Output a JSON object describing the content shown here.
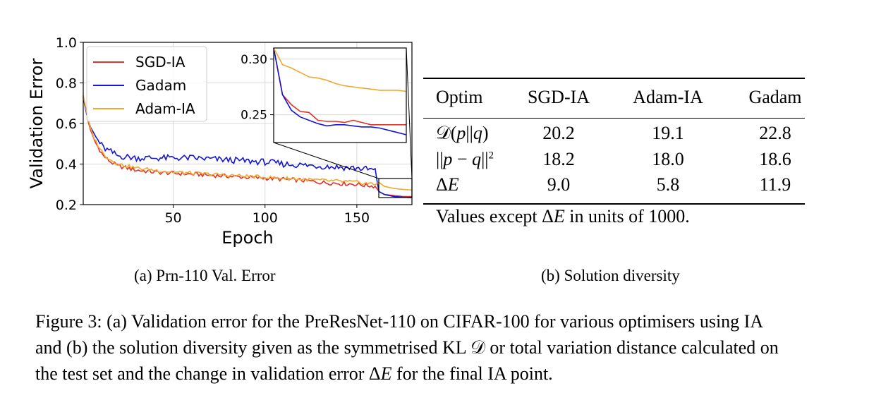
{
  "chart_data": {
    "type": "line",
    "xlabel": "Epoch",
    "ylabel": "Validation Error",
    "xlim": [
      1,
      180
    ],
    "ylim": [
      0.2,
      1.0
    ],
    "xticks": [
      50,
      100,
      150
    ],
    "yticks": [
      0.2,
      0.4,
      0.6,
      0.8,
      1.0
    ],
    "ytick_labels": [
      "0.2",
      "0.4",
      "0.6",
      "0.8",
      "1.0"
    ],
    "xtick_labels": [
      "50",
      "100",
      "150"
    ],
    "grid": true,
    "legend_position": "top-left",
    "series": [
      {
        "name": "SGD-IA",
        "color": "#e0312b",
        "points": [
          [
            1,
            0.73
          ],
          [
            3,
            0.64
          ],
          [
            5,
            0.56
          ],
          [
            8,
            0.5
          ],
          [
            12,
            0.44
          ],
          [
            16,
            0.41
          ],
          [
            20,
            0.39
          ],
          [
            30,
            0.37
          ],
          [
            40,
            0.36
          ],
          [
            50,
            0.355
          ],
          [
            60,
            0.35
          ],
          [
            70,
            0.345
          ],
          [
            80,
            0.34
          ],
          [
            90,
            0.335
          ],
          [
            100,
            0.33
          ],
          [
            110,
            0.325
          ],
          [
            120,
            0.32
          ],
          [
            130,
            0.31
          ],
          [
            140,
            0.305
          ],
          [
            150,
            0.3
          ],
          [
            160,
            0.29
          ],
          [
            162,
            0.265
          ],
          [
            165,
            0.25
          ],
          [
            170,
            0.245
          ],
          [
            175,
            0.24
          ],
          [
            180,
            0.24
          ]
        ]
      },
      {
        "name": "Gadam",
        "color": "#1515d6",
        "points": [
          [
            1,
            0.73
          ],
          [
            3,
            0.64
          ],
          [
            5,
            0.58
          ],
          [
            8,
            0.53
          ],
          [
            12,
            0.48
          ],
          [
            16,
            0.46
          ],
          [
            20,
            0.44
          ],
          [
            30,
            0.43
          ],
          [
            40,
            0.43
          ],
          [
            50,
            0.43
          ],
          [
            60,
            0.43
          ],
          [
            70,
            0.425
          ],
          [
            80,
            0.42
          ],
          [
            90,
            0.415
          ],
          [
            100,
            0.41
          ],
          [
            110,
            0.4
          ],
          [
            120,
            0.395
          ],
          [
            130,
            0.39
          ],
          [
            140,
            0.385
          ],
          [
            150,
            0.38
          ],
          [
            160,
            0.37
          ],
          [
            162,
            0.265
          ],
          [
            165,
            0.25
          ],
          [
            170,
            0.24
          ],
          [
            175,
            0.237
          ],
          [
            180,
            0.234
          ]
        ]
      },
      {
        "name": "Adam-IA",
        "color": "#f0a830",
        "points": [
          [
            1,
            0.74
          ],
          [
            3,
            0.65
          ],
          [
            5,
            0.57
          ],
          [
            8,
            0.51
          ],
          [
            12,
            0.45
          ],
          [
            16,
            0.42
          ],
          [
            20,
            0.4
          ],
          [
            30,
            0.38
          ],
          [
            40,
            0.37
          ],
          [
            50,
            0.36
          ],
          [
            60,
            0.355
          ],
          [
            70,
            0.35
          ],
          [
            80,
            0.345
          ],
          [
            90,
            0.34
          ],
          [
            100,
            0.335
          ],
          [
            110,
            0.33
          ],
          [
            120,
            0.325
          ],
          [
            130,
            0.32
          ],
          [
            140,
            0.315
          ],
          [
            150,
            0.31
          ],
          [
            160,
            0.3
          ],
          [
            162,
            0.31
          ],
          [
            165,
            0.29
          ],
          [
            170,
            0.28
          ],
          [
            175,
            0.275
          ],
          [
            180,
            0.272
          ]
        ]
      }
    ],
    "inset": {
      "xlim": [
        161,
        180
      ],
      "ylim": [
        0.225,
        0.31
      ],
      "yticks": [
        0.25,
        0.3
      ],
      "ytick_labels": [
        "0.25",
        "0.30"
      ],
      "series": [
        {
          "name": "SGD-IA",
          "values": [
            0.31,
            0.268,
            0.259,
            0.253,
            0.252,
            0.245,
            0.244,
            0.244,
            0.243,
            0.245,
            0.243,
            0.241,
            0.241,
            0.241,
            0.241,
            0.241
          ]
        },
        {
          "name": "Gadam",
          "values": [
            0.31,
            0.268,
            0.254,
            0.248,
            0.245,
            0.242,
            0.24,
            0.241,
            0.241,
            0.24,
            0.239,
            0.239,
            0.238,
            0.236,
            0.234,
            0.232
          ]
        },
        {
          "name": "Adam-IA",
          "values": [
            0.31,
            0.295,
            0.292,
            0.288,
            0.284,
            0.283,
            0.281,
            0.278,
            0.276,
            0.275,
            0.274,
            0.273,
            0.272,
            0.272,
            0.272,
            0.271
          ]
        }
      ]
    }
  },
  "subcaption_a": "(a) Prn-110 Val. Error",
  "subcaption_b": "(b) Solution diversity",
  "table": {
    "header": [
      "Optim",
      "SGD-IA",
      "Adam-IA",
      "Gadam"
    ],
    "rows": [
      {
        "label_pre": "𝒟(",
        "label_p": "p",
        "label_mid": "||",
        "label_q": "q",
        "label_post": ")",
        "values": [
          "20.2",
          "19.1",
          "22.8"
        ]
      },
      {
        "label_pre": "||",
        "label_p": "p",
        "label_mid": " − ",
        "label_q": "q",
        "label_post": "||",
        "label_sup": "2",
        "values": [
          "18.2",
          "18.0",
          "18.6"
        ]
      },
      {
        "label_pre": "Δ",
        "label_p": "E",
        "label_mid": "",
        "label_q": "",
        "label_post": "",
        "values": [
          "9.0",
          "5.8",
          "11.9"
        ]
      }
    ],
    "note_pre": "Values except Δ",
    "note_var": "E",
    "note_post": " in units of 1000."
  },
  "caption": {
    "line1": "Figure 3: (a) Validation error for the PreResNet-110 on CIFAR-100 for various optimisers using IA",
    "line2_pre": "and (b) the solution diversity given as the symmetrised KL ",
    "line2_sym": "𝒟",
    "line2_post": " or total variation distance calculated on",
    "line3_pre": "the test set and the change in validation error Δ",
    "line3_var": "E",
    "line3_post": " for the final IA point."
  }
}
